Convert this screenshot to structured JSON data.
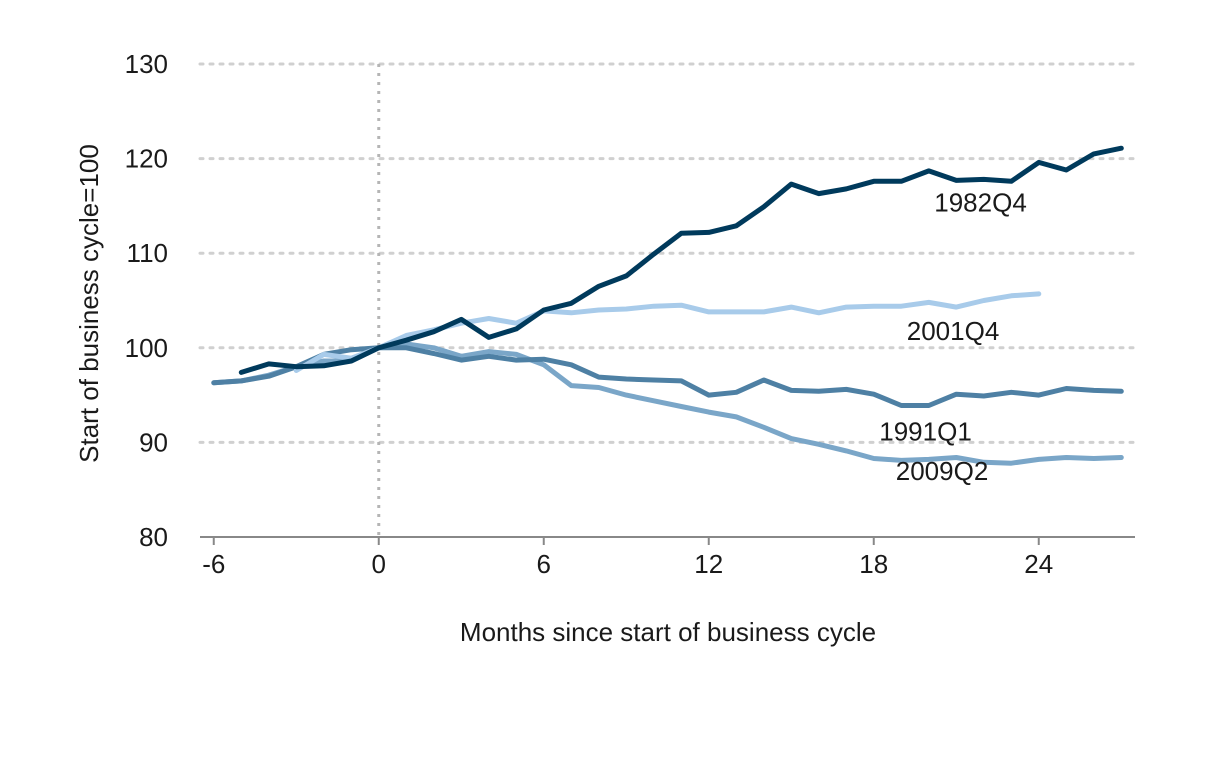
{
  "chart_data": {
    "type": "line",
    "title": "",
    "xlabel": "Months since start of business cycle",
    "ylabel": "Start of business cycle=100",
    "xlim": [
      -6.5,
      27.5
    ],
    "ylim": [
      80,
      130
    ],
    "xticks": [
      -6,
      0,
      6,
      12,
      18,
      24
    ],
    "xtick_labels": [
      "-6",
      "0",
      "6",
      "12",
      "18",
      "24"
    ],
    "yticks": [
      80,
      90,
      100,
      110,
      120,
      130
    ],
    "ytick_labels": [
      "80",
      "90",
      "100",
      "110",
      "120",
      "130"
    ],
    "grid": true,
    "reference_line_x": 0,
    "legend": "inline labels",
    "series": [
      {
        "name": "2009Q2",
        "color": "#7aa6c8",
        "x": [
          -6,
          -5,
          -4,
          -3,
          -2,
          -1,
          0,
          1,
          2,
          3,
          4,
          5,
          6,
          7,
          8,
          9,
          10,
          11,
          12,
          13,
          14,
          15,
          16,
          17,
          18,
          19,
          20,
          21,
          22,
          23,
          24,
          25,
          26,
          27
        ],
        "values": [
          96.3,
          96.5,
          97.1,
          98.0,
          98.6,
          98.6,
          100.0,
          100.4,
          100.0,
          99.1,
          99.6,
          99.3,
          98.2,
          96.0,
          95.8,
          95.0,
          94.4,
          93.8,
          93.2,
          92.7,
          91.6,
          90.4,
          89.8,
          89.1,
          88.3,
          88.1,
          88.2,
          88.4,
          87.9,
          87.8,
          88.2,
          88.4,
          88.3,
          88.4
        ]
      },
      {
        "name": "1991Q1",
        "color": "#4e80a4",
        "x": [
          -6,
          -5,
          -4,
          -3,
          -2,
          -1,
          0,
          1,
          2,
          3,
          4,
          5,
          6,
          7,
          8,
          9,
          10,
          11,
          12,
          13,
          14,
          15,
          16,
          17,
          18,
          19,
          20,
          21,
          22,
          23,
          24,
          25,
          26,
          27
        ],
        "values": [
          96.3,
          96.5,
          97.0,
          98.0,
          99.3,
          99.8,
          100.0,
          100.0,
          99.4,
          98.7,
          99.1,
          98.7,
          98.8,
          98.2,
          96.9,
          96.7,
          96.6,
          96.5,
          95.0,
          95.3,
          96.6,
          95.5,
          95.4,
          95.6,
          95.1,
          93.9,
          93.9,
          95.1,
          94.9,
          95.3,
          95.0,
          95.7,
          95.5,
          95.4
        ]
      },
      {
        "name": "2001Q4",
        "color": "#a8cbea",
        "x": [
          -3,
          -2,
          -1,
          0,
          1,
          2,
          3,
          4,
          5,
          6,
          7,
          8,
          9,
          10,
          11,
          12,
          13,
          14,
          15,
          16,
          17,
          18,
          19,
          20,
          21,
          22,
          23,
          24
        ],
        "values": [
          97.6,
          99.3,
          98.9,
          100.0,
          101.3,
          101.9,
          102.6,
          103.1,
          102.6,
          103.9,
          103.7,
          104.0,
          104.1,
          104.4,
          104.5,
          103.8,
          103.8,
          103.8,
          104.3,
          103.7,
          104.3,
          104.4,
          104.4,
          104.8,
          104.3,
          105.0,
          105.5,
          105.7
        ]
      },
      {
        "name": "1982Q4",
        "color": "#003a5c",
        "x": [
          -5,
          -4,
          -3,
          -2,
          -1,
          0,
          1,
          2,
          3,
          4,
          5,
          6,
          7,
          8,
          9,
          10,
          11,
          12,
          13,
          14,
          15,
          16,
          17,
          18,
          19,
          20,
          21,
          22,
          23,
          24,
          25,
          26,
          27
        ],
        "values": [
          97.4,
          98.3,
          98.0,
          98.1,
          98.6,
          100.0,
          100.8,
          101.7,
          103.0,
          101.1,
          102.0,
          104.0,
          104.7,
          106.5,
          107.6,
          109.9,
          112.1,
          112.2,
          112.9,
          114.9,
          117.3,
          116.3,
          116.8,
          117.6,
          117.6,
          118.7,
          117.7,
          117.8,
          117.6,
          119.6,
          118.8,
          120.5,
          121.1
        ]
      }
    ],
    "annotations": [
      {
        "text": "1982Q4",
        "x": 20.2,
        "y": 114.4
      },
      {
        "text": "2001Q4",
        "x": 19.2,
        "y": 100.8
      },
      {
        "text": "1991Q1",
        "x": 18.2,
        "y": 90.2
      },
      {
        "text": "2009Q2",
        "x": 18.8,
        "y": 86.0
      }
    ]
  }
}
